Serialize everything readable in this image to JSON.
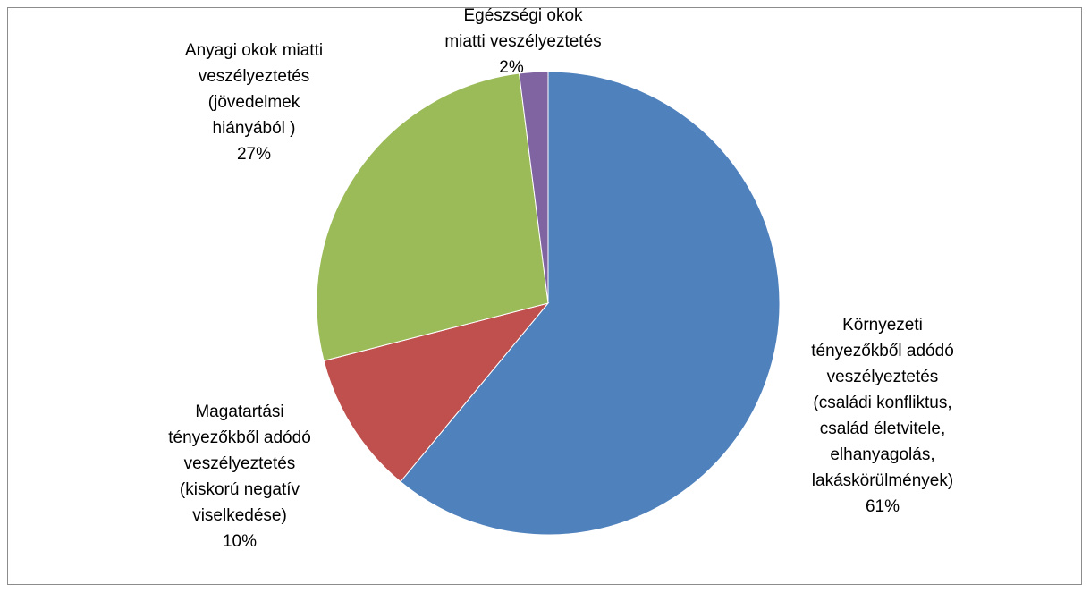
{
  "chart_data": {
    "type": "pie",
    "categories": [
      "Környezeti\ntényezőkből adódó\nveszélyeztetés\n(családi konfliktus,\ncsalád életvitele,\nelhanyagolás,\nlakáskörülmények)",
      "Magatartási\ntényezőkből adódó\nveszélyeztetés\n(kiskorú negatív\nviselkedése)",
      "Anyagi okok miatti\nveszélyeztetés\n(jövedelmek\nhiányából )",
      "Egészségi okok\nmiatti veszélyeztetés"
    ],
    "values": [
      61,
      10,
      27,
      2
    ],
    "value_labels": [
      "61%",
      "10%",
      "27%",
      "2%"
    ],
    "colors": [
      "#4f81bd",
      "#c0504d",
      "#9bbb59",
      "#8064a2"
    ]
  }
}
